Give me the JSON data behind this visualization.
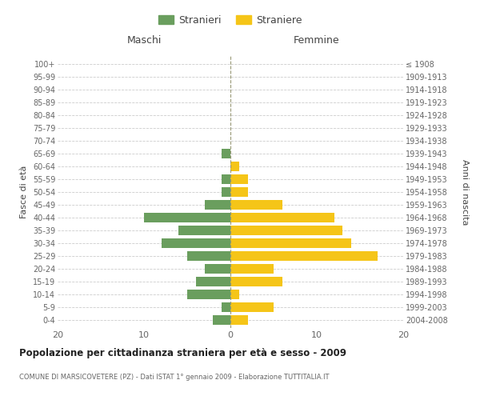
{
  "age_groups": [
    "0-4",
    "5-9",
    "10-14",
    "15-19",
    "20-24",
    "25-29",
    "30-34",
    "35-39",
    "40-44",
    "45-49",
    "50-54",
    "55-59",
    "60-64",
    "65-69",
    "70-74",
    "75-79",
    "80-84",
    "85-89",
    "90-94",
    "95-99",
    "100+"
  ],
  "birth_years": [
    "2004-2008",
    "1999-2003",
    "1994-1998",
    "1989-1993",
    "1984-1988",
    "1979-1983",
    "1974-1978",
    "1969-1973",
    "1964-1968",
    "1959-1963",
    "1954-1958",
    "1949-1953",
    "1944-1948",
    "1939-1943",
    "1934-1938",
    "1929-1933",
    "1924-1928",
    "1919-1923",
    "1914-1918",
    "1909-1913",
    "≤ 1908"
  ],
  "males": [
    2,
    1,
    5,
    4,
    3,
    5,
    8,
    6,
    10,
    3,
    1,
    1,
    0,
    1,
    0,
    0,
    0,
    0,
    0,
    0,
    0
  ],
  "females": [
    2,
    5,
    1,
    6,
    5,
    17,
    14,
    13,
    12,
    6,
    2,
    2,
    1,
    0,
    0,
    0,
    0,
    0,
    0,
    0,
    0
  ],
  "male_color": "#6a9e5e",
  "female_color": "#f5c518",
  "title": "Popolazione per cittadinanza straniera per età e sesso - 2009",
  "subtitle": "COMUNE DI MARSICOVETERE (PZ) - Dati ISTAT 1° gennaio 2009 - Elaborazione TUTTITALIA.IT",
  "header_left": "Maschi",
  "header_right": "Femmine",
  "ylabel_left": "Fasce di età",
  "ylabel_right": "Anni di nascita",
  "legend_male": "Stranieri",
  "legend_female": "Straniere",
  "xlim": 20,
  "bar_height": 0.75,
  "background_color": "#ffffff",
  "grid_color": "#cccccc",
  "text_color": "#666666",
  "axis_label_color": "#444444"
}
